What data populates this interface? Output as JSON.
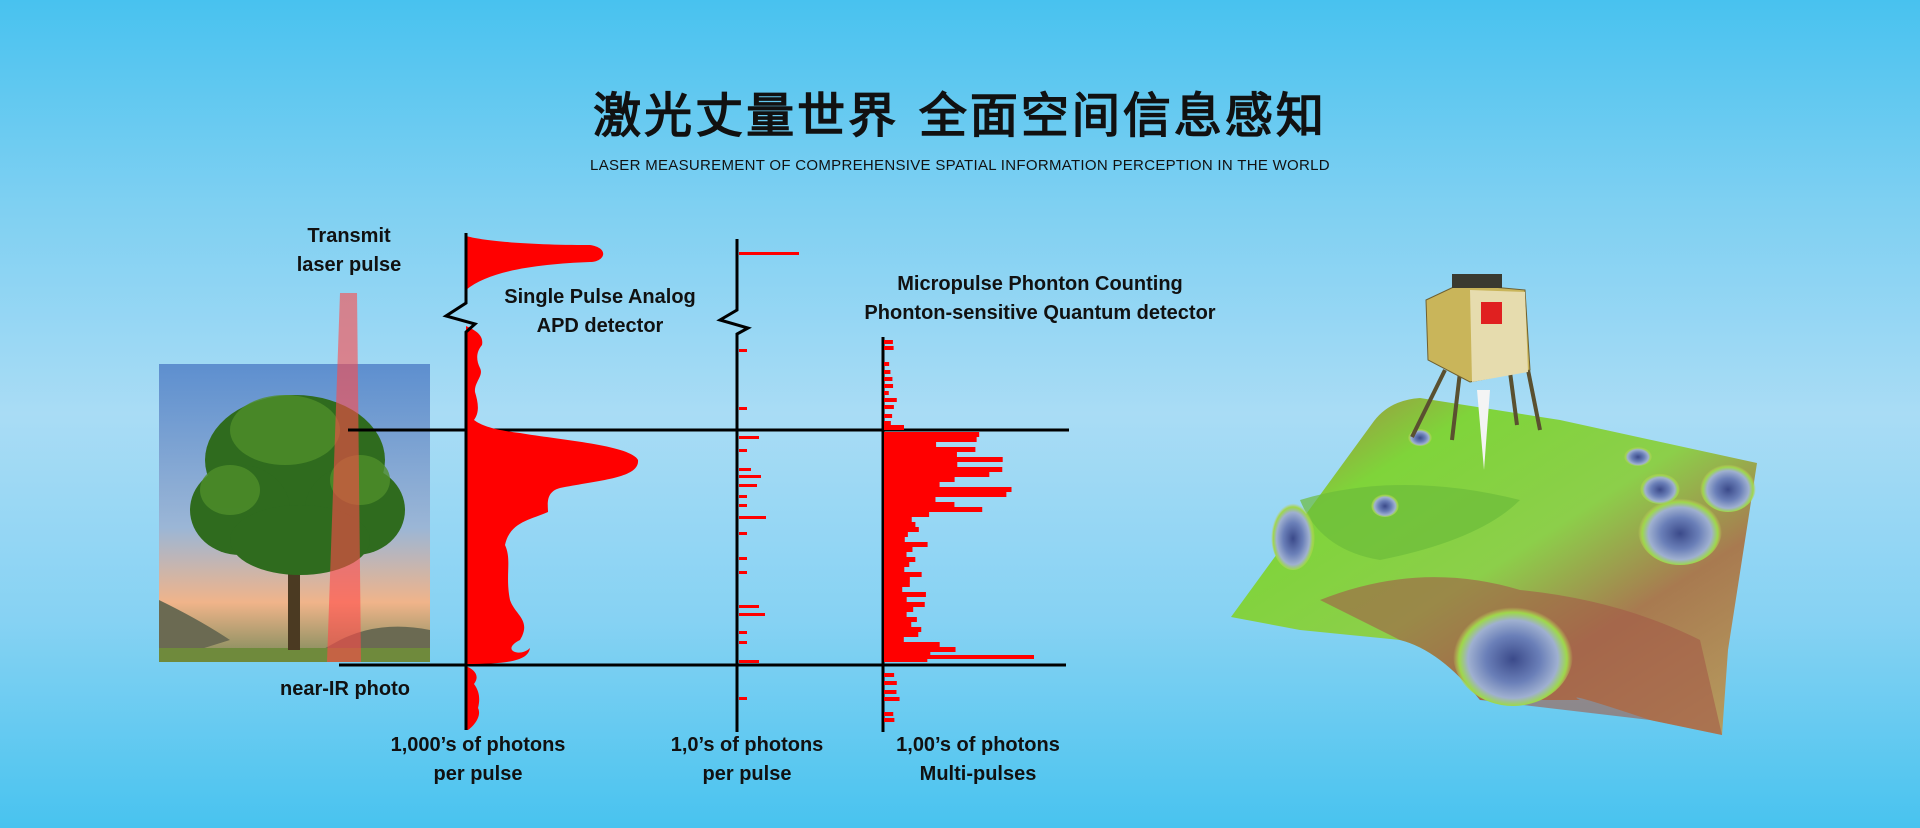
{
  "header": {
    "title": "激光丈量世界 全面空间信息感知",
    "subtitle": "LASER MEASUREMENT OF COMPREHENSIVE SPATIAL INFORMATION PERCEPTION IN THE WORLD"
  },
  "diagram": {
    "transmit_label": [
      "Transmit",
      "laser pulse"
    ],
    "photo_label": "near-IR photo",
    "analog_label": [
      "Single Pulse Analog",
      "APD detector"
    ],
    "counting_label": [
      "Micropulse Phonton Counting",
      "Phonton-sensitive Quantum detector"
    ],
    "axis1_caption": [
      "1,000’s of photons",
      "per pulse"
    ],
    "axis2_caption": [
      "1,0’s of photons",
      "per pulse"
    ],
    "axis3_caption": [
      "1,00’s of photons",
      "Multi-pulses"
    ]
  },
  "colors": {
    "signal": "#ff0000",
    "axis": "#000000",
    "beam": "#ff5050"
  }
}
